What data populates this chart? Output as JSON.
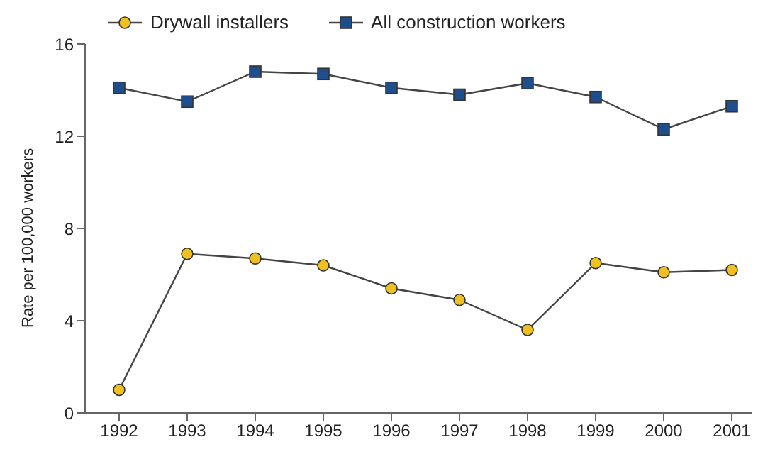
{
  "chart_data": {
    "type": "line",
    "ylabel": "Rate per 100,000 workers",
    "categories": [
      "1992",
      "1993",
      "1994",
      "1995",
      "1996",
      "1997",
      "1998",
      "1999",
      "2000",
      "2001"
    ],
    "series": [
      {
        "name": "Drywall installers",
        "color": "#f0c020",
        "marker": "circle",
        "values": [
          1.0,
          6.9,
          6.7,
          6.4,
          5.4,
          4.9,
          3.6,
          6.5,
          6.1,
          6.2
        ]
      },
      {
        "name": "All construction workers",
        "color": "#1f4e8c",
        "marker": "square",
        "values": [
          14.1,
          13.5,
          14.8,
          14.7,
          14.1,
          13.8,
          14.3,
          13.7,
          12.3,
          13.3
        ]
      }
    ],
    "ylim": [
      0,
      16
    ],
    "yticks": [
      0,
      4,
      8,
      12,
      16
    ],
    "grid": false,
    "legend": "top left",
    "line_style": "solid"
  }
}
